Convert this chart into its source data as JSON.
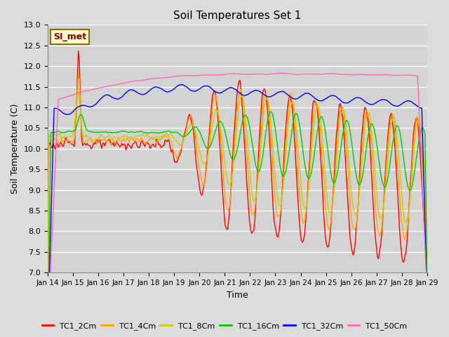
{
  "title": "Soil Temperatures Set 1",
  "xlabel": "Time",
  "ylabel": "Soil Temperature (C)",
  "ylim": [
    7.0,
    13.0
  ],
  "yticks": [
    7.0,
    7.5,
    8.0,
    8.5,
    9.0,
    9.5,
    10.0,
    10.5,
    11.0,
    11.5,
    12.0,
    12.5,
    13.0
  ],
  "x_labels": [
    "Jan 14",
    "Jan 15",
    "Jan 16",
    "Jan 17",
    "Jan 18",
    "Jan 19",
    "Jan 20",
    "Jan 21",
    "Jan 22",
    "Jan 23",
    "Jan 24",
    "Jan 25",
    "Jan 26",
    "Jan 27",
    "Jan 28",
    "Jan 29"
  ],
  "annotation": "SI_met",
  "annotation_color": "#8B0000",
  "annotation_bg": "#FFFACD",
  "series_colors": {
    "TC1_2Cm": "#FF0000",
    "TC1_4Cm": "#FFA500",
    "TC1_8Cm": "#CCCC00",
    "TC1_16Cm": "#00CC00",
    "TC1_32Cm": "#0000FF",
    "TC1_50Cm": "#FF69B4"
  },
  "background_color": "#DCDCDC",
  "plot_bg_color": "#D3D3D3",
  "grid_color": "#FFFFFF"
}
